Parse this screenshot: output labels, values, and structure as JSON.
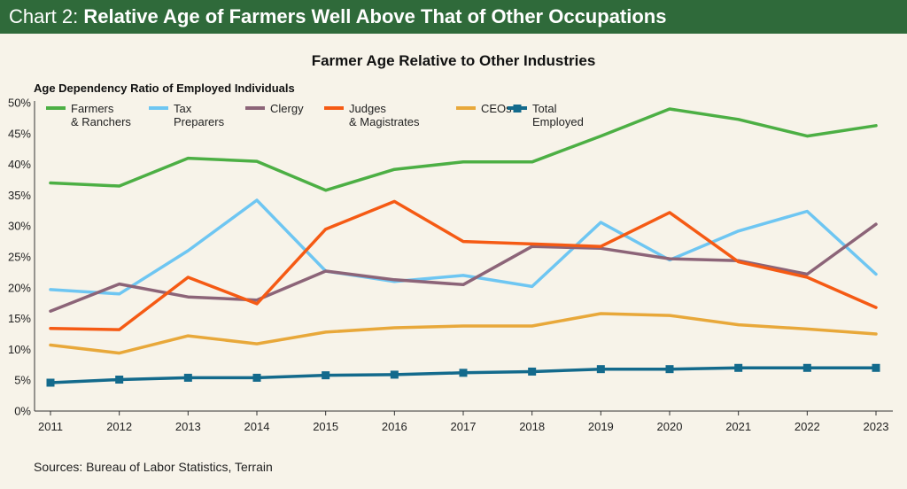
{
  "header": {
    "prefix": "Chart 2: ",
    "title": "Relative Age of Farmers Well Above That of Other Occupations"
  },
  "chart_data": {
    "type": "line",
    "title": "Farmer Age Relative to Other Industries",
    "ylabel": "Age Dependency Ratio of Employed Individuals",
    "xlabel": "",
    "ylim": [
      0,
      50
    ],
    "yticks": [
      0,
      5,
      10,
      15,
      20,
      25,
      30,
      35,
      40,
      45,
      50
    ],
    "ytick_labels": [
      "0%",
      "5%",
      "10%",
      "15%",
      "20%",
      "25%",
      "30%",
      "35%",
      "40%",
      "45%",
      "50%"
    ],
    "categories": [
      "2011",
      "2012",
      "2013",
      "2014",
      "2015",
      "2016",
      "2017",
      "2018",
      "2019",
      "2020",
      "2021",
      "2022",
      "2023"
    ],
    "series": [
      {
        "name": "Farmers & Ranchers",
        "legend_lines": [
          "Farmers",
          "& Ranchers"
        ],
        "color": "#4caf44",
        "values": [
          37.0,
          36.5,
          41.0,
          40.5,
          35.8,
          39.2,
          40.4,
          40.4,
          44.6,
          49.0,
          47.3,
          44.6,
          46.3
        ]
      },
      {
        "name": "Tax Preparers",
        "legend_lines": [
          "Tax",
          "Preparers"
        ],
        "color": "#6ec6f2",
        "values": [
          19.7,
          19.0,
          26.0,
          34.2,
          22.7,
          21.0,
          22.0,
          20.2,
          30.6,
          24.5,
          29.2,
          32.4,
          22.2
        ]
      },
      {
        "name": "Clergy",
        "legend_lines": [
          "Clergy"
        ],
        "color": "#8c6478",
        "values": [
          16.2,
          20.6,
          18.5,
          18.0,
          22.7,
          21.3,
          20.5,
          26.7,
          26.4,
          24.7,
          24.4,
          22.2,
          30.3
        ]
      },
      {
        "name": "Judges & Magistrates",
        "legend_lines": [
          "Judges",
          "& Magistrates"
        ],
        "color": "#f55a14",
        "values": [
          13.4,
          13.2,
          21.7,
          17.4,
          29.5,
          34.0,
          27.5,
          27.1,
          26.7,
          32.2,
          24.2,
          21.7,
          16.8
        ]
      },
      {
        "name": "CEOs",
        "legend_lines": [
          "CEOs"
        ],
        "color": "#e8a83a",
        "values": [
          10.7,
          9.4,
          12.2,
          10.9,
          12.8,
          13.5,
          13.8,
          13.8,
          15.8,
          15.5,
          14.0,
          13.3,
          12.5
        ]
      },
      {
        "name": "Total Employed",
        "legend_lines": [
          "Total",
          "Employed"
        ],
        "color": "#136a8c",
        "markers": true,
        "values": [
          4.6,
          5.1,
          5.4,
          5.4,
          5.8,
          5.9,
          6.2,
          6.4,
          6.8,
          6.8,
          7.0,
          7.0,
          7.0
        ]
      }
    ],
    "grid": false,
    "legend_position": "top"
  },
  "footer": {
    "source": "Sources: Bureau of Labor Statistics, Terrain"
  }
}
